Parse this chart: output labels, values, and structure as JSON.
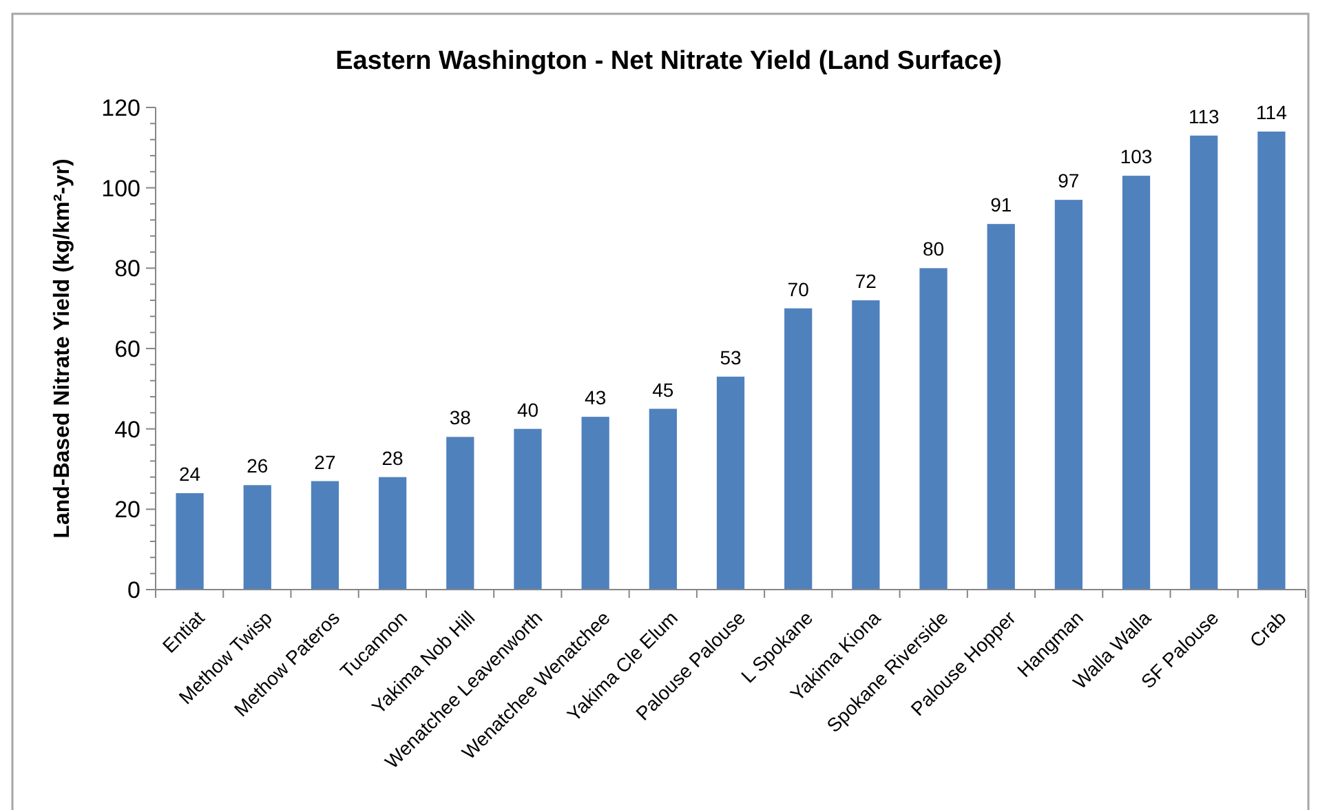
{
  "chart_data": {
    "type": "bar",
    "title": "Eastern Washington - Net Nitrate Yield (Land Surface)",
    "ylabel": "Land-Based Nitrate Yield (kg/km²-yr)",
    "categories": [
      "Entiat",
      "Methow Twisp",
      "Methow Pateros",
      "Tucannon",
      "Yakima Nob Hill",
      "Wenatchee Leavenworth",
      "Wenatchee Wenatchee",
      "Yakima Cle Elum",
      "Palouse Palouse",
      "L Spokane",
      "Yakima Kiona",
      "Spokane Riverside",
      "Palouse Hopper",
      "Hangman",
      "Walla Walla",
      "SF Palouse",
      "Crab"
    ],
    "values": [
      24,
      26,
      27,
      28,
      38,
      40,
      43,
      45,
      53,
      70,
      72,
      80,
      91,
      97,
      103,
      113,
      114
    ],
    "color": "#4f81bd",
    "data_labels": true,
    "grid": false,
    "ylim": [
      0,
      120
    ],
    "yticks": [
      0,
      {
        "value": 4,
        "label": null
      },
      {
        "value": 8,
        "label": null
      },
      {
        "value": 12,
        "label": null
      },
      {
        "value": 16,
        "label": null
      },
      20,
      {
        "value": 24,
        "label": null
      },
      {
        "value": 28,
        "label": null
      },
      {
        "value": 32,
        "label": null
      },
      {
        "value": 36,
        "label": null
      },
      40,
      {
        "value": 44,
        "label": null
      },
      {
        "value": 48,
        "label": null
      },
      {
        "value": 52,
        "label": null
      },
      {
        "value": 56,
        "label": null
      },
      60,
      {
        "value": 64,
        "label": null
      },
      {
        "value": 68,
        "label": null
      },
      {
        "value": 72,
        "label": null
      },
      {
        "value": 76,
        "label": null
      },
      80,
      {
        "value": 84,
        "label": null
      },
      {
        "value": 88,
        "label": null
      },
      {
        "value": 92,
        "label": null
      },
      {
        "value": 96,
        "label": null
      },
      100,
      {
        "value": 104,
        "label": null
      },
      {
        "value": 108,
        "label": null
      },
      {
        "value": 112,
        "label": null
      },
      {
        "value": 116,
        "label": null
      },
      120
    ]
  }
}
